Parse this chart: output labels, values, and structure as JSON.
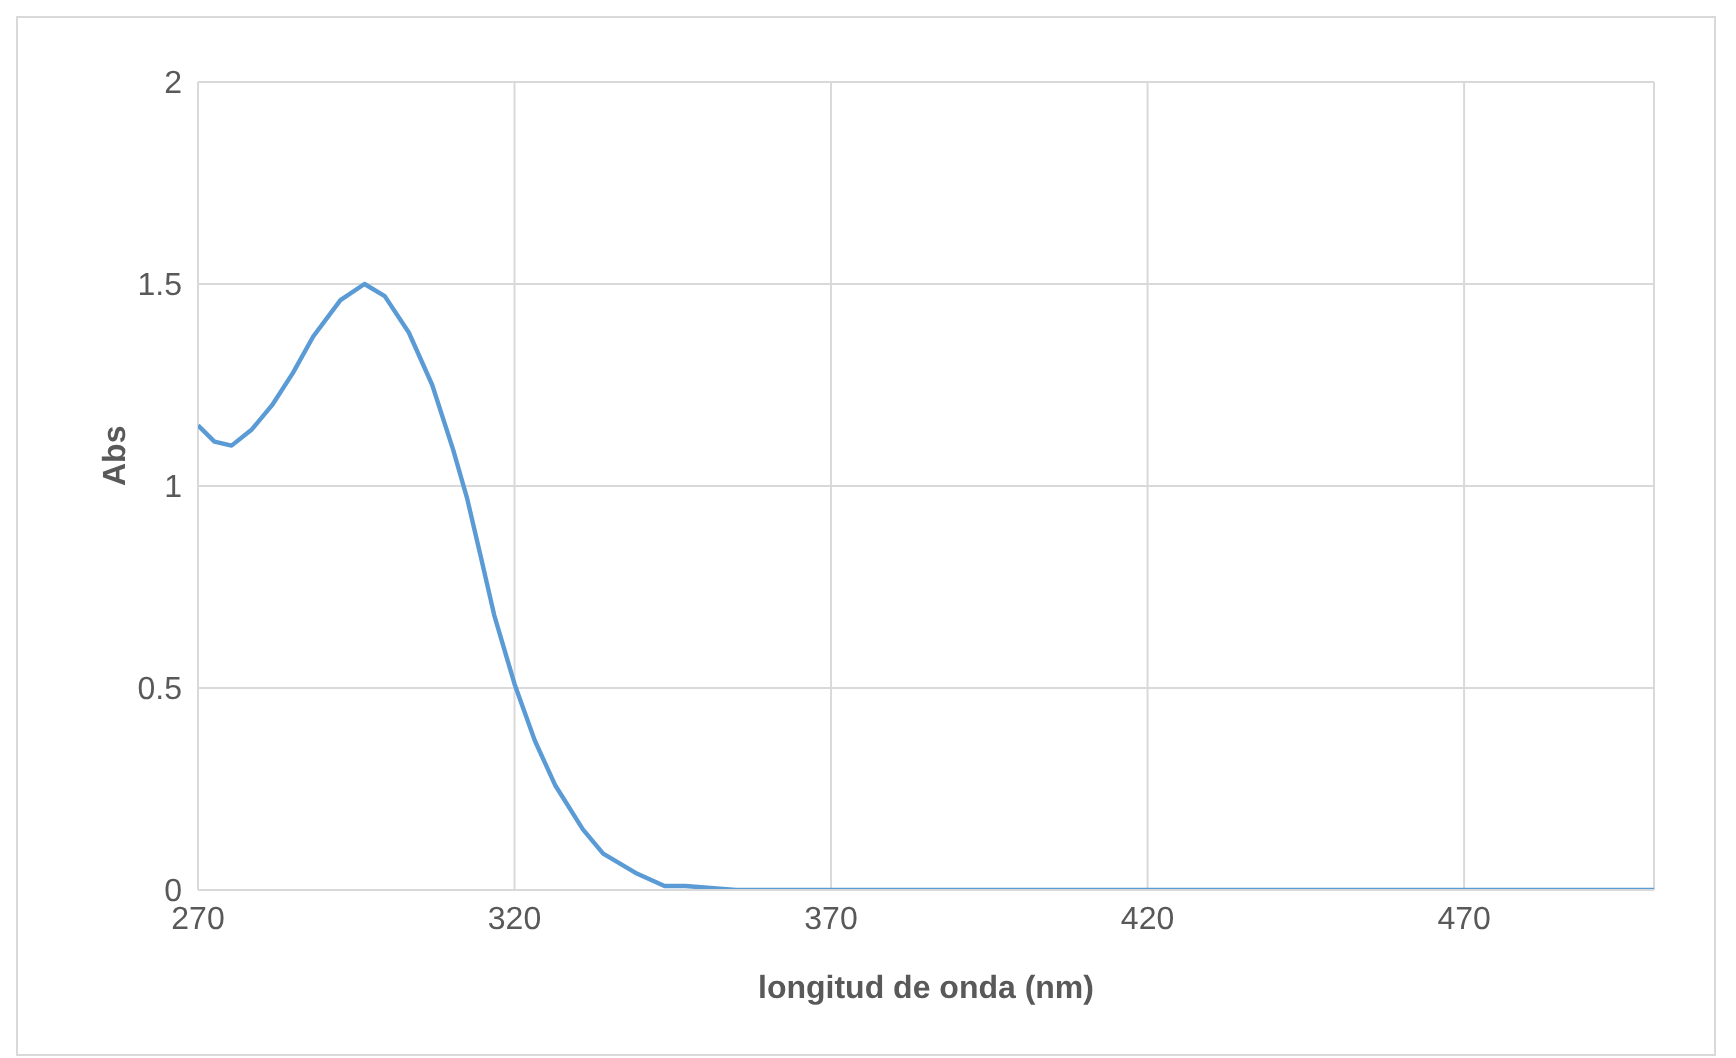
{
  "chart_data": {
    "type": "line",
    "xlabel": "longitud de onda (nm)",
    "ylabel": "Abs",
    "x": [
      270,
      272.6,
      275.3,
      278.5,
      281.7,
      285,
      288.2,
      292.5,
      296.3,
      299.5,
      303.3,
      307,
      310.3,
      312.5,
      314.6,
      316.8,
      320,
      323.2,
      326.4,
      330.8,
      334,
      339.4,
      343.7,
      347,
      355,
      380,
      420,
      460,
      500
    ],
    "series": [
      {
        "color": "#5b9bd5",
        "values": [
          1.15,
          1.11,
          1.1,
          1.14,
          1.2,
          1.28,
          1.37,
          1.46,
          1.5,
          1.47,
          1.38,
          1.25,
          1.09,
          0.97,
          0.83,
          0.68,
          0.51,
          0.37,
          0.26,
          0.15,
          0.09,
          0.04,
          0.01,
          0.01,
          0,
          0,
          0,
          0,
          0
        ]
      }
    ],
    "xlim": [
      270,
      500
    ],
    "xticks": [
      270,
      320,
      370,
      420,
      470
    ],
    "ylim": [
      0,
      2
    ],
    "yticks": [
      0,
      0.5,
      1,
      1.5,
      2
    ],
    "grid": true,
    "marker": "none",
    "line_style": "solid"
  }
}
